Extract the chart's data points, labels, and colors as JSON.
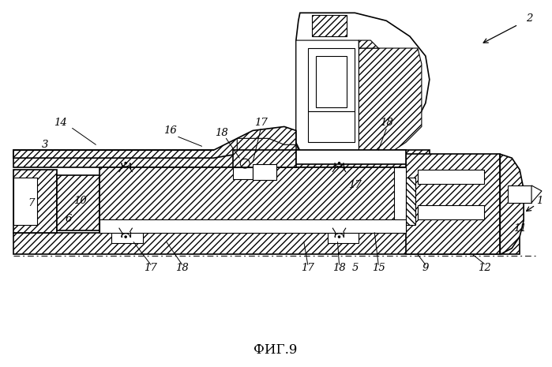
{
  "title": "ФИГ.9",
  "bg": "#ffffff",
  "lc": "#000000",
  "fig_w": 6.99,
  "fig_h": 4.65,
  "dpi": 100,
  "hatch": "////",
  "lw": 0.8
}
